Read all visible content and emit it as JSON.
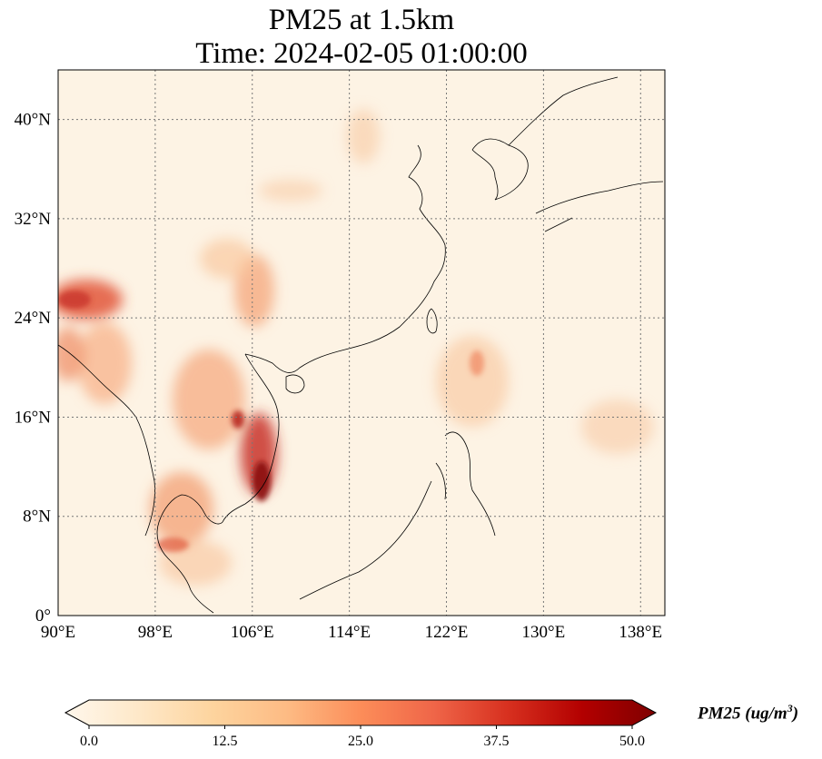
{
  "title": {
    "line1": "PM25 at 1.5km",
    "line2": "Time: 2024-02-05 01:00:00"
  },
  "map": {
    "lon_range": [
      90,
      140
    ],
    "lat_range": [
      0,
      44
    ],
    "lat_ticks": [
      {
        "value": 0,
        "label": "0°"
      },
      {
        "value": 8,
        "label": "8°N"
      },
      {
        "value": 16,
        "label": "16°N"
      },
      {
        "value": 24,
        "label": "24°N"
      },
      {
        "value": 32,
        "label": "32°N"
      },
      {
        "value": 40,
        "label": "40°N"
      }
    ],
    "lon_ticks": [
      {
        "value": 90,
        "label": "90°E"
      },
      {
        "value": 98,
        "label": "98°E"
      },
      {
        "value": 106,
        "label": "106°E"
      },
      {
        "value": 114,
        "label": "114°E"
      },
      {
        "value": 122,
        "label": "122°E"
      },
      {
        "value": 130,
        "label": "130°E"
      },
      {
        "value": 138,
        "label": "138°E"
      }
    ],
    "gridlines": "dotted",
    "background_color": "#fdf3e4"
  },
  "colorbar": {
    "colormap": "OrRd",
    "colors": [
      "#fff7ec",
      "#fee8c8",
      "#fdd49e",
      "#fdbb84",
      "#fc8d59",
      "#ef6548",
      "#d7301f",
      "#b30000",
      "#7f0000"
    ],
    "ticks": [
      "0.0",
      "12.5",
      "25.0",
      "37.5",
      "50.0"
    ],
    "range": [
      0,
      50
    ],
    "extend": "both",
    "label_prefix": "PM25 (ug/m",
    "label_sup": "3",
    "label_suffix": ")"
  }
}
